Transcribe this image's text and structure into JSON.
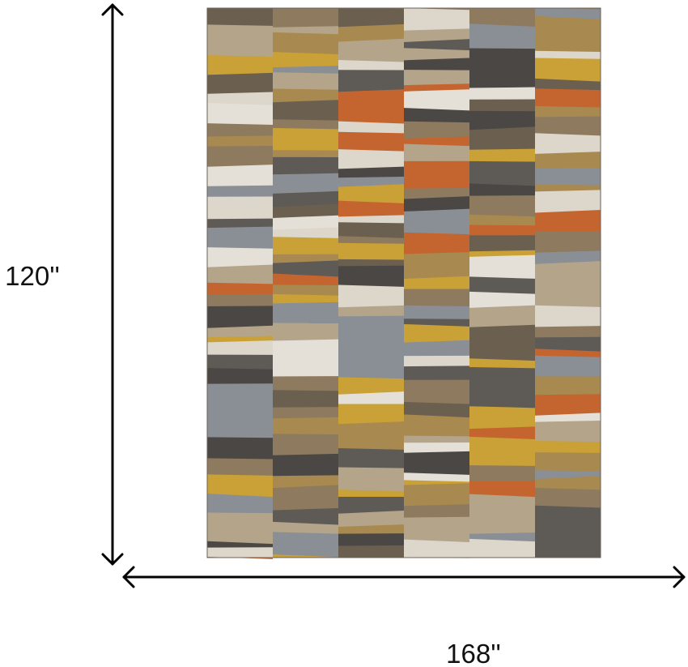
{
  "dimensions": {
    "height": "120''",
    "width": "168''"
  }
}
